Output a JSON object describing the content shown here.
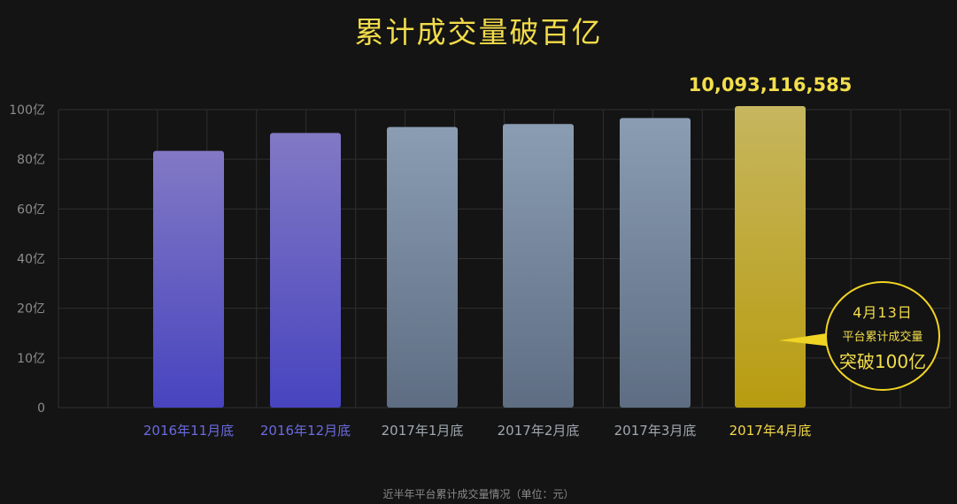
{
  "title": "累计成交量破百亿",
  "footnote": "近半年平台累计成交量情况（单位：元）",
  "top_value_label": "10,093,116,585",
  "callout": {
    "line1": "4月13日",
    "line2": "平台累计成交量",
    "line3": "突破100亿"
  },
  "chart_data": {
    "type": "bar",
    "categories": [
      "2016年11月底",
      "2016年12月底",
      "2017年1月底",
      "2017年2月底",
      "2017年3月底",
      "2017年4月底"
    ],
    "values": [
      86,
      92,
      94,
      95,
      97,
      101
    ],
    "y_tick_labels": [
      "0",
      "10亿",
      "20亿",
      "40亿",
      "60亿",
      "80亿",
      "100亿"
    ],
    "grid": true,
    "colors": {
      "purple": [
        "#8279c4",
        "#4744bf"
      ],
      "gray": [
        "#8a9db3",
        "#5e6d82"
      ],
      "gold": [
        "#c6b65e",
        "#b89c10"
      ],
      "label_purple": "#6a6ae0",
      "label_gray": "#a0a7b0",
      "label_gold": "#f2d84a"
    }
  }
}
